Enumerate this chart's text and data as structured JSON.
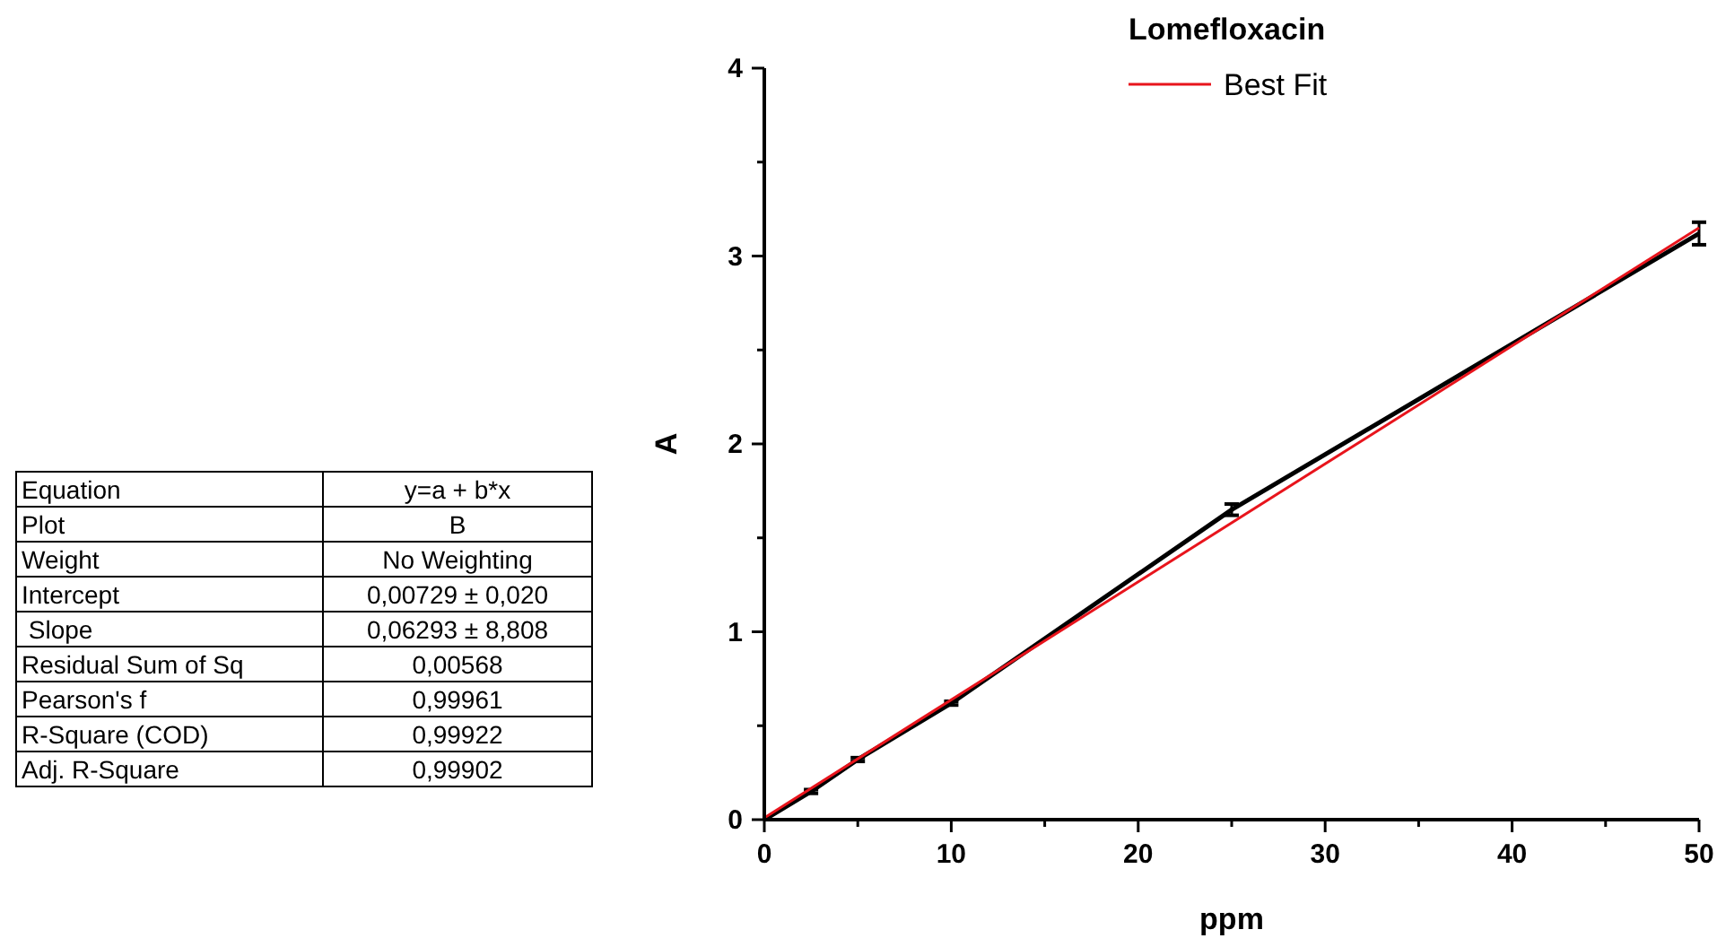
{
  "chart_data": [
    {
      "type": "other",
      "annotations": [
        "Equation",
        "y=a + b*x",
        "Plot",
        "B",
        "Weight",
        "No Weighting",
        "Intercept",
        "0,00729 ± 0,020",
        " Slope",
        "0,06293 ± 8,808",
        "Residual Sum of Sq",
        "0,00568",
        "Pearson's f",
        "0,99961",
        "R-Square (COD)",
        "0,99922",
        "Adj. R-Square",
        "0,99902"
      ]
    },
    {
      "type": "line",
      "legend_title": "Lomefloxacin",
      "xlabel": "ppm",
      "ylabel": "A",
      "x": [
        0,
        2.5,
        5,
        10,
        25,
        50
      ],
      "legend": "top",
      "marker": "none",
      "line_style": "solid",
      "xlim": [
        0,
        50
      ],
      "ylim": [
        0,
        4
      ],
      "xticks": [
        0,
        {
          "value": 5,
          "label": null
        },
        10,
        {
          "value": 15,
          "label": null
        },
        20,
        {
          "value": 25,
          "label": null
        },
        30,
        {
          "value": 35,
          "label": null
        },
        40,
        {
          "value": 45,
          "label": null
        },
        50
      ],
      "yticks": [
        0,
        {
          "value": 0.5,
          "label": null
        },
        1,
        {
          "value": 1.5,
          "label": null
        },
        2,
        {
          "value": 2.5,
          "label": null
        },
        3,
        {
          "value": 3.5,
          "label": null
        },
        4
      ],
      "series": [
        {
          "color": "#000000",
          "values": [
            0,
            0.15,
            0.32,
            0.62,
            1.65,
            3.12
          ],
          "errors": [
            null,
            0.01,
            0.01,
            0.01,
            0.03,
            0.06
          ]
        },
        {
          "name": "Best Fit",
          "color": "#e8141c",
          "x": [
            0,
            50
          ],
          "values": [
            0.01,
            3.15
          ]
        }
      ]
    }
  ]
}
